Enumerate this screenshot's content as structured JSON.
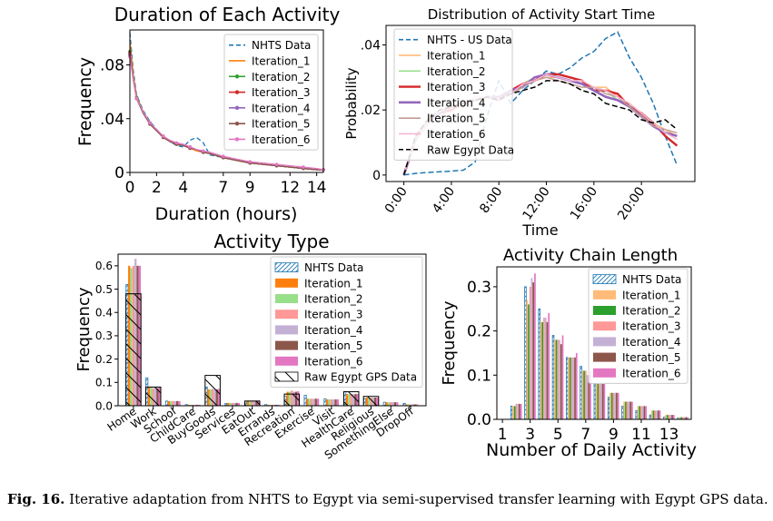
{
  "caption": {
    "label": "Fig. 16.",
    "text": "Iterative adaptation from NHTS to Egypt via semi-supervised transfer learning with Egypt GPS data."
  },
  "chart_data": [
    {
      "type": "line",
      "title": "Duration of Each Activity",
      "xlabel": "Duration (hours)",
      "ylabel": "Frequency",
      "xlim": [
        0,
        14.5
      ],
      "ylim": [
        0,
        0.106
      ],
      "xticks": [
        0,
        2,
        4,
        7,
        9,
        12,
        14
      ],
      "xtick_labels": [
        "0",
        "2",
        "4",
        "7",
        "9",
        "12",
        "14"
      ],
      "yticks": [
        0,
        0.04,
        0.08
      ],
      "ytick_labels": [
        "0",
        ".04",
        ".08"
      ],
      "legend": "top-right",
      "x": [
        0,
        0.25,
        0.5,
        1,
        1.5,
        2,
        2.5,
        3,
        3.5,
        4,
        4.5,
        5,
        5.5,
        6,
        7,
        8,
        9,
        10,
        11,
        12,
        13,
        14,
        14.5
      ],
      "series": [
        {
          "name": "NHTS Data",
          "color": "#1f77b4",
          "dash": "dashed",
          "values": [
            0.104,
            0.076,
            0.058,
            0.046,
            0.038,
            0.032,
            0.027,
            0.023,
            0.02,
            0.019,
            0.024,
            0.026,
            0.022,
            0.013,
            0.011,
            0.009,
            0.007,
            0.006,
            0.005,
            0.004,
            0.003,
            0.002,
            0.002
          ]
        },
        {
          "name": "Iteration_1",
          "color": "#ff7f0e",
          "values": [
            0.098,
            0.073,
            0.057,
            0.045,
            0.037,
            0.031,
            0.027,
            0.023,
            0.021,
            0.02,
            0.018,
            0.016,
            0.015,
            0.014,
            0.011,
            0.009,
            0.007,
            0.006,
            0.005,
            0.004,
            0.003,
            0.002,
            0.002
          ]
        },
        {
          "name": "Iteration_2",
          "color": "#2ca02c",
          "marker": "circle",
          "values": [
            0.09,
            0.071,
            0.056,
            0.045,
            0.037,
            0.031,
            0.027,
            0.023,
            0.021,
            0.02,
            0.019,
            0.017,
            0.015,
            0.014,
            0.011,
            0.009,
            0.007,
            0.006,
            0.005,
            0.004,
            0.003,
            0.002,
            0.002
          ]
        },
        {
          "name": "Iteration_3",
          "color": "#d62728",
          "marker": "circle",
          "values": [
            0.089,
            0.07,
            0.055,
            0.044,
            0.036,
            0.031,
            0.026,
            0.023,
            0.021,
            0.02,
            0.018,
            0.017,
            0.015,
            0.014,
            0.011,
            0.009,
            0.007,
            0.006,
            0.005,
            0.004,
            0.003,
            0.002,
            0.002
          ]
        },
        {
          "name": "Iteration_4",
          "color": "#9467bd",
          "marker": "star",
          "values": [
            0.088,
            0.07,
            0.055,
            0.044,
            0.037,
            0.031,
            0.027,
            0.023,
            0.021,
            0.02,
            0.019,
            0.017,
            0.015,
            0.014,
            0.011,
            0.009,
            0.007,
            0.006,
            0.005,
            0.004,
            0.003,
            0.002,
            0.002
          ]
        },
        {
          "name": "Iteration_5",
          "color": "#8c564b",
          "marker": "star",
          "values": [
            0.087,
            0.069,
            0.055,
            0.044,
            0.036,
            0.031,
            0.026,
            0.023,
            0.021,
            0.02,
            0.018,
            0.017,
            0.015,
            0.014,
            0.011,
            0.009,
            0.007,
            0.006,
            0.005,
            0.004,
            0.003,
            0.002,
            0.002
          ]
        },
        {
          "name": "Iteration_6",
          "color": "#e377c2",
          "marker": "star",
          "values": [
            0.086,
            0.069,
            0.055,
            0.045,
            0.037,
            0.032,
            0.027,
            0.024,
            0.022,
            0.021,
            0.019,
            0.017,
            0.016,
            0.015,
            0.012,
            0.01,
            0.008,
            0.007,
            0.006,
            0.005,
            0.004,
            0.003,
            0.002
          ]
        }
      ]
    },
    {
      "type": "line",
      "title": "Distribution of Activity Start Time",
      "xlabel": "Time",
      "ylabel": "Probability",
      "xlim": [
        -1.5,
        24.5
      ],
      "ylim": [
        -0.002,
        0.046
      ],
      "xticks": [
        0,
        4,
        8,
        12,
        16,
        20
      ],
      "xtick_labels": [
        "0:00",
        "4:00",
        "8:00",
        "12:00",
        "16:00",
        "20:00"
      ],
      "yticks": [
        0,
        0.02,
        0.04
      ],
      "ytick_labels": [
        "0",
        ".02",
        ".04"
      ],
      "legend": "top-left",
      "x": [
        0,
        1,
        2,
        3,
        4,
        5,
        6,
        7,
        8,
        9,
        10,
        11,
        12,
        13,
        14,
        15,
        16,
        17,
        18,
        19,
        20,
        21,
        22,
        23
      ],
      "series": [
        {
          "name": "NHTS - US Data",
          "color": "#1f77b4",
          "dash": "dashed",
          "values": [
            0.0,
            0.0005,
            0.0008,
            0.001,
            0.0012,
            0.0015,
            0.004,
            0.018,
            0.029,
            0.022,
            0.026,
            0.029,
            0.032,
            0.031,
            0.033,
            0.036,
            0.038,
            0.042,
            0.044,
            0.036,
            0.03,
            0.022,
            0.012,
            0.003
          ]
        },
        {
          "name": "Iteration_1",
          "color": "#ffbb78",
          "values": [
            0.0,
            0.012,
            0.017,
            0.02,
            0.021,
            0.022,
            0.024,
            0.024,
            0.023,
            0.025,
            0.027,
            0.029,
            0.03,
            0.03,
            0.029,
            0.028,
            0.027,
            0.027,
            0.024,
            0.022,
            0.019,
            0.016,
            0.014,
            0.012
          ]
        },
        {
          "name": "Iteration_2",
          "color": "#98df8a",
          "values": [
            0.0,
            0.011,
            0.016,
            0.019,
            0.021,
            0.022,
            0.023,
            0.024,
            0.023,
            0.025,
            0.028,
            0.03,
            0.031,
            0.03,
            0.029,
            0.029,
            0.027,
            0.026,
            0.023,
            0.022,
            0.018,
            0.016,
            0.013,
            0.011
          ]
        },
        {
          "name": "Iteration_3",
          "color": "#d62728",
          "width": 2.4,
          "values": [
            0.0,
            0.011,
            0.016,
            0.019,
            0.02,
            0.022,
            0.023,
            0.024,
            0.023,
            0.026,
            0.028,
            0.029,
            0.031,
            0.031,
            0.03,
            0.029,
            0.026,
            0.026,
            0.025,
            0.021,
            0.019,
            0.016,
            0.012,
            0.009
          ]
        },
        {
          "name": "Iteration_4",
          "color": "#9467bd",
          "width": 2.6,
          "values": [
            0.0,
            0.011,
            0.016,
            0.019,
            0.021,
            0.022,
            0.023,
            0.024,
            0.024,
            0.026,
            0.027,
            0.03,
            0.031,
            0.03,
            0.029,
            0.028,
            0.026,
            0.024,
            0.023,
            0.021,
            0.018,
            0.015,
            0.013,
            0.012
          ]
        },
        {
          "name": "Iteration_5",
          "color": "#c49c94",
          "values": [
            0.0,
            0.012,
            0.016,
            0.02,
            0.021,
            0.021,
            0.023,
            0.024,
            0.023,
            0.025,
            0.027,
            0.029,
            0.03,
            0.029,
            0.028,
            0.027,
            0.027,
            0.025,
            0.024,
            0.021,
            0.018,
            0.015,
            0.014,
            0.013
          ]
        },
        {
          "name": "Iteration_6",
          "color": "#f7b6d2",
          "values": [
            0.0,
            0.011,
            0.016,
            0.02,
            0.021,
            0.022,
            0.024,
            0.024,
            0.023,
            0.025,
            0.028,
            0.029,
            0.031,
            0.03,
            0.029,
            0.029,
            0.027,
            0.026,
            0.024,
            0.022,
            0.019,
            0.016,
            0.013,
            0.011
          ]
        },
        {
          "name": "Raw Egypt Data",
          "color": "#000000",
          "dash": "dashed",
          "values": [
            0.0,
            0.012,
            0.017,
            0.02,
            0.021,
            0.022,
            0.023,
            0.024,
            0.023,
            0.025,
            0.026,
            0.027,
            0.029,
            0.029,
            0.028,
            0.026,
            0.025,
            0.022,
            0.021,
            0.02,
            0.017,
            0.016,
            0.017,
            0.014
          ]
        }
      ]
    },
    {
      "type": "bar",
      "title": "Activity Type",
      "xlabel": "",
      "ylabel": "Frequency",
      "ylim": [
        0,
        0.65
      ],
      "yticks": [
        0,
        0.1,
        0.2,
        0.3,
        0.4,
        0.5,
        0.6
      ],
      "ytick_labels": [
        "0.0",
        "0.1",
        "0.2",
        "0.3",
        "0.4",
        "0.5",
        "0.6"
      ],
      "legend": "top-right",
      "categories": [
        "Home",
        "Work",
        "School",
        "ChildCare",
        "BuyGoods",
        "Services",
        "EatOut",
        "Errands",
        "Recreation",
        "Exercise",
        "Visit",
        "HealthCare",
        "Religious",
        "SomethingElse",
        "DropOff"
      ],
      "series": [
        {
          "name": "NHTS Data",
          "color": "#1f77b4",
          "pattern": "hatch",
          "values": [
            0.52,
            0.12,
            0.02,
            0.005,
            0.08,
            0.01,
            0.02,
            0.005,
            0.04,
            0.045,
            0.03,
            0.06,
            0.03,
            0.015,
            0.01
          ]
        },
        {
          "name": "Iteration_1",
          "color": "#ff7f0e",
          "values": [
            0.6,
            0.08,
            0.02,
            0.004,
            0.07,
            0.012,
            0.022,
            0.004,
            0.06,
            0.03,
            0.027,
            0.05,
            0.035,
            0.015,
            0.006
          ]
        },
        {
          "name": "Iteration_2",
          "color": "#98df8a",
          "values": [
            0.59,
            0.08,
            0.02,
            0.004,
            0.07,
            0.012,
            0.022,
            0.004,
            0.06,
            0.03,
            0.027,
            0.05,
            0.035,
            0.015,
            0.006
          ]
        },
        {
          "name": "Iteration_3",
          "color": "#ff9896",
          "values": [
            0.6,
            0.075,
            0.02,
            0.004,
            0.072,
            0.012,
            0.022,
            0.004,
            0.065,
            0.03,
            0.027,
            0.05,
            0.035,
            0.015,
            0.006
          ]
        },
        {
          "name": "Iteration_4",
          "color": "#c5b0d5",
          "values": [
            0.63,
            0.075,
            0.02,
            0.004,
            0.07,
            0.012,
            0.022,
            0.004,
            0.06,
            0.03,
            0.027,
            0.05,
            0.035,
            0.015,
            0.006
          ]
        },
        {
          "name": "Iteration_5",
          "color": "#8c564b",
          "values": [
            0.6,
            0.075,
            0.02,
            0.004,
            0.07,
            0.012,
            0.022,
            0.004,
            0.06,
            0.03,
            0.027,
            0.05,
            0.035,
            0.015,
            0.006
          ]
        },
        {
          "name": "Iteration_6",
          "color": "#e377c2",
          "values": [
            0.6,
            0.078,
            0.02,
            0.004,
            0.072,
            0.012,
            0.022,
            0.004,
            0.062,
            0.03,
            0.027,
            0.05,
            0.035,
            0.015,
            0.006
          ]
        },
        {
          "name": "Raw Egypt GPS Data",
          "color": "#000000",
          "pattern": "hatch-back",
          "values": [
            0.48,
            0.08,
            0.0,
            0.0,
            0.13,
            0.0,
            0.02,
            0.0,
            0.05,
            0.0,
            0.0,
            0.06,
            0.04,
            0.0,
            0.0
          ]
        }
      ]
    },
    {
      "type": "bar",
      "title": "Activity Chain Length",
      "xlabel": "Number of Daily Activity",
      "ylabel": "Frequency",
      "ylim": [
        0,
        0.345
      ],
      "xlim": [
        0.6,
        14.6
      ],
      "xticks": [
        1,
        3,
        5,
        7,
        9,
        11,
        13
      ],
      "xtick_labels": [
        "1",
        "3",
        "5",
        "7",
        "9",
        "11",
        "13"
      ],
      "yticks": [
        0,
        0.1,
        0.2,
        0.3
      ],
      "ytick_labels": [
        "0.0",
        "0.1",
        "0.2",
        "0.3"
      ],
      "legend": "top-right",
      "categories": [
        2,
        3,
        4,
        5,
        6,
        7,
        8,
        9,
        10,
        11,
        12,
        13,
        14
      ],
      "series": [
        {
          "name": "NHTS Data",
          "color": "#1f77b4",
          "pattern": "hatch",
          "values": [
            0.03,
            0.3,
            0.25,
            0.19,
            0.14,
            0.12,
            0.08,
            0.05,
            0.03,
            0.02,
            0.01,
            0.005,
            0.003
          ]
        },
        {
          "name": "Iteration_1",
          "color": "#ffbb78",
          "values": [
            0.03,
            0.27,
            0.22,
            0.18,
            0.14,
            0.11,
            0.08,
            0.06,
            0.04,
            0.03,
            0.02,
            0.01,
            0.005
          ]
        },
        {
          "name": "Iteration_2",
          "color": "#2ca02c",
          "values": [
            0.03,
            0.26,
            0.22,
            0.18,
            0.14,
            0.11,
            0.08,
            0.06,
            0.04,
            0.03,
            0.02,
            0.01,
            0.005
          ]
        },
        {
          "name": "Iteration_3",
          "color": "#ff9896",
          "values": [
            0.035,
            0.3,
            0.23,
            0.18,
            0.14,
            0.11,
            0.08,
            0.06,
            0.04,
            0.03,
            0.02,
            0.01,
            0.005
          ]
        },
        {
          "name": "Iteration_4",
          "color": "#c5b0d5",
          "values": [
            0.035,
            0.32,
            0.23,
            0.18,
            0.14,
            0.1,
            0.08,
            0.06,
            0.04,
            0.03,
            0.02,
            0.01,
            0.005
          ]
        },
        {
          "name": "Iteration_5",
          "color": "#8c564b",
          "values": [
            0.035,
            0.31,
            0.22,
            0.17,
            0.14,
            0.1,
            0.08,
            0.06,
            0.04,
            0.03,
            0.02,
            0.01,
            0.005
          ]
        },
        {
          "name": "Iteration_6",
          "color": "#e377c2",
          "values": [
            0.035,
            0.33,
            0.24,
            0.19,
            0.15,
            0.11,
            0.08,
            0.06,
            0.04,
            0.03,
            0.02,
            0.01,
            0.005
          ]
        }
      ]
    }
  ]
}
